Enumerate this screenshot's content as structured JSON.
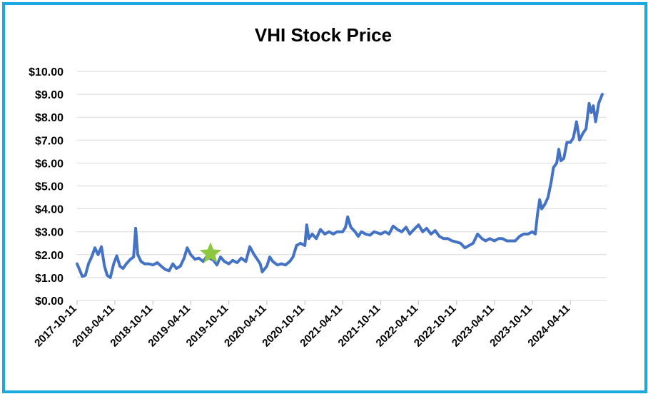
{
  "chart_data": {
    "type": "line",
    "title": "VHI Stock Price",
    "xlabel": "",
    "ylabel": "",
    "ylim": [
      0,
      10
    ],
    "grid": true,
    "y_ticks": [
      "$0.00",
      "$1.00",
      "$2.00",
      "$3.00",
      "$4.00",
      "$5.00",
      "$6.00",
      "$7.00",
      "$8.00",
      "$9.00",
      "$10.00"
    ],
    "x_ticks": [
      "2017-10-11",
      "2018-04-11",
      "2018-10-11",
      "2019-04-11",
      "2019-10-11",
      "2020-04-11",
      "2020-10-11",
      "2021-04-11",
      "2021-10-11",
      "2022-04-11",
      "2022-10-11",
      "2023-04-11",
      "2023-10-11",
      "2024-04-11"
    ],
    "xlim": [
      "2017-10-11",
      "2024-09-11"
    ],
    "series": [
      {
        "color": "#4472c4",
        "points": [
          [
            "2017-10-11",
            1.6
          ],
          [
            "2017-10-25",
            1.3
          ],
          [
            "2017-11-05",
            1.05
          ],
          [
            "2017-11-20",
            1.1
          ],
          [
            "2017-12-05",
            1.6
          ],
          [
            "2017-12-20",
            1.9
          ],
          [
            "2018-01-05",
            2.3
          ],
          [
            "2018-01-20",
            2.0
          ],
          [
            "2018-02-05",
            2.35
          ],
          [
            "2018-02-20",
            1.5
          ],
          [
            "2018-03-05",
            1.1
          ],
          [
            "2018-03-20",
            1.0
          ],
          [
            "2018-04-05",
            1.6
          ],
          [
            "2018-04-20",
            1.95
          ],
          [
            "2018-05-05",
            1.5
          ],
          [
            "2018-05-20",
            1.4
          ],
          [
            "2018-06-05",
            1.6
          ],
          [
            "2018-06-25",
            1.8
          ],
          [
            "2018-07-10",
            1.9
          ],
          [
            "2018-07-20",
            3.15
          ],
          [
            "2018-07-30",
            2.0
          ],
          [
            "2018-08-15",
            1.7
          ],
          [
            "2018-09-01",
            1.6
          ],
          [
            "2018-09-20",
            1.6
          ],
          [
            "2018-10-11",
            1.55
          ],
          [
            "2018-11-01",
            1.65
          ],
          [
            "2018-11-20",
            1.5
          ],
          [
            "2018-12-10",
            1.35
          ],
          [
            "2018-12-28",
            1.3
          ],
          [
            "2019-01-15",
            1.6
          ],
          [
            "2019-02-01",
            1.4
          ],
          [
            "2019-02-20",
            1.5
          ],
          [
            "2019-03-10",
            1.85
          ],
          [
            "2019-03-25",
            2.3
          ],
          [
            "2019-04-11",
            2.0
          ],
          [
            "2019-05-01",
            1.8
          ],
          [
            "2019-05-20",
            1.85
          ],
          [
            "2019-06-10",
            1.7
          ],
          [
            "2019-06-25",
            1.9
          ],
          [
            "2019-07-10",
            1.85
          ],
          [
            "2019-07-30",
            1.75
          ],
          [
            "2019-08-15",
            1.55
          ],
          [
            "2019-09-01",
            1.9
          ],
          [
            "2019-09-20",
            1.7
          ],
          [
            "2019-10-11",
            1.6
          ],
          [
            "2019-10-30",
            1.75
          ],
          [
            "2019-11-20",
            1.65
          ],
          [
            "2019-12-10",
            1.85
          ],
          [
            "2020-01-01",
            1.7
          ],
          [
            "2020-01-20",
            2.35
          ],
          [
            "2020-02-10",
            2.0
          ],
          [
            "2020-02-25",
            1.8
          ],
          [
            "2020-03-10",
            1.6
          ],
          [
            "2020-03-20",
            1.25
          ],
          [
            "2020-04-11",
            1.5
          ],
          [
            "2020-04-25",
            1.9
          ],
          [
            "2020-05-10",
            1.7
          ],
          [
            "2020-06-01",
            1.55
          ],
          [
            "2020-06-20",
            1.6
          ],
          [
            "2020-07-10",
            1.55
          ],
          [
            "2020-07-30",
            1.7
          ],
          [
            "2020-08-15",
            1.9
          ],
          [
            "2020-09-01",
            2.4
          ],
          [
            "2020-09-20",
            2.5
          ],
          [
            "2020-10-11",
            2.4
          ],
          [
            "2020-10-20",
            3.3
          ],
          [
            "2020-10-30",
            2.7
          ],
          [
            "2020-11-15",
            2.9
          ],
          [
            "2020-12-05",
            2.7
          ],
          [
            "2020-12-25",
            3.1
          ],
          [
            "2021-01-15",
            2.9
          ],
          [
            "2021-02-05",
            3.0
          ],
          [
            "2021-02-25",
            2.9
          ],
          [
            "2021-03-15",
            3.0
          ],
          [
            "2021-04-11",
            3.0
          ],
          [
            "2021-04-25",
            3.2
          ],
          [
            "2021-05-05",
            3.65
          ],
          [
            "2021-05-20",
            3.2
          ],
          [
            "2021-06-10",
            3.0
          ],
          [
            "2021-06-25",
            2.8
          ],
          [
            "2021-07-10",
            3.0
          ],
          [
            "2021-07-30",
            2.9
          ],
          [
            "2021-08-20",
            2.85
          ],
          [
            "2021-09-10",
            3.0
          ],
          [
            "2021-10-11",
            2.9
          ],
          [
            "2021-11-01",
            3.0
          ],
          [
            "2021-11-20",
            2.9
          ],
          [
            "2021-12-10",
            3.25
          ],
          [
            "2021-12-30",
            3.1
          ],
          [
            "2022-01-20",
            3.0
          ],
          [
            "2022-02-10",
            3.2
          ],
          [
            "2022-02-28",
            2.9
          ],
          [
            "2022-03-20",
            3.1
          ],
          [
            "2022-04-11",
            3.3
          ],
          [
            "2022-05-01",
            3.0
          ],
          [
            "2022-05-20",
            3.15
          ],
          [
            "2022-06-10",
            2.9
          ],
          [
            "2022-06-30",
            3.05
          ],
          [
            "2022-07-20",
            2.8
          ],
          [
            "2022-08-10",
            2.7
          ],
          [
            "2022-08-30",
            2.7
          ],
          [
            "2022-09-20",
            2.6
          ],
          [
            "2022-10-11",
            2.55
          ],
          [
            "2022-10-30",
            2.5
          ],
          [
            "2022-11-20",
            2.3
          ],
          [
            "2022-12-10",
            2.4
          ],
          [
            "2022-12-30",
            2.5
          ],
          [
            "2023-01-20",
            2.9
          ],
          [
            "2023-02-10",
            2.7
          ],
          [
            "2023-02-28",
            2.6
          ],
          [
            "2023-03-20",
            2.7
          ],
          [
            "2023-04-11",
            2.6
          ],
          [
            "2023-05-01",
            2.7
          ],
          [
            "2023-05-20",
            2.7
          ],
          [
            "2023-06-10",
            2.6
          ],
          [
            "2023-06-30",
            2.6
          ],
          [
            "2023-07-20",
            2.6
          ],
          [
            "2023-08-10",
            2.8
          ],
          [
            "2023-08-30",
            2.9
          ],
          [
            "2023-09-20",
            2.9
          ],
          [
            "2023-10-11",
            3.0
          ],
          [
            "2023-10-25",
            2.9
          ],
          [
            "2023-11-05",
            3.8
          ],
          [
            "2023-11-15",
            4.4
          ],
          [
            "2023-11-25",
            4.0
          ],
          [
            "2023-12-10",
            4.2
          ],
          [
            "2023-12-25",
            4.5
          ],
          [
            "2024-01-10",
            5.2
          ],
          [
            "2024-01-20",
            5.8
          ],
          [
            "2024-02-05",
            6.0
          ],
          [
            "2024-02-15",
            6.6
          ],
          [
            "2024-02-25",
            6.1
          ],
          [
            "2024-03-10",
            6.2
          ],
          [
            "2024-03-25",
            6.9
          ],
          [
            "2024-04-11",
            6.9
          ],
          [
            "2024-04-25",
            7.1
          ],
          [
            "2024-05-10",
            7.8
          ],
          [
            "2024-05-25",
            7.0
          ],
          [
            "2024-06-10",
            7.3
          ],
          [
            "2024-06-25",
            7.5
          ],
          [
            "2024-07-10",
            8.6
          ],
          [
            "2024-07-20",
            8.2
          ],
          [
            "2024-07-30",
            8.5
          ],
          [
            "2024-08-10",
            7.8
          ],
          [
            "2024-08-25",
            8.6
          ],
          [
            "2024-09-11",
            9.0
          ]
        ]
      }
    ],
    "marker": {
      "symbol": "star",
      "color": "#8dc63f",
      "x": "2019-07-15",
      "y": 2.05
    }
  }
}
